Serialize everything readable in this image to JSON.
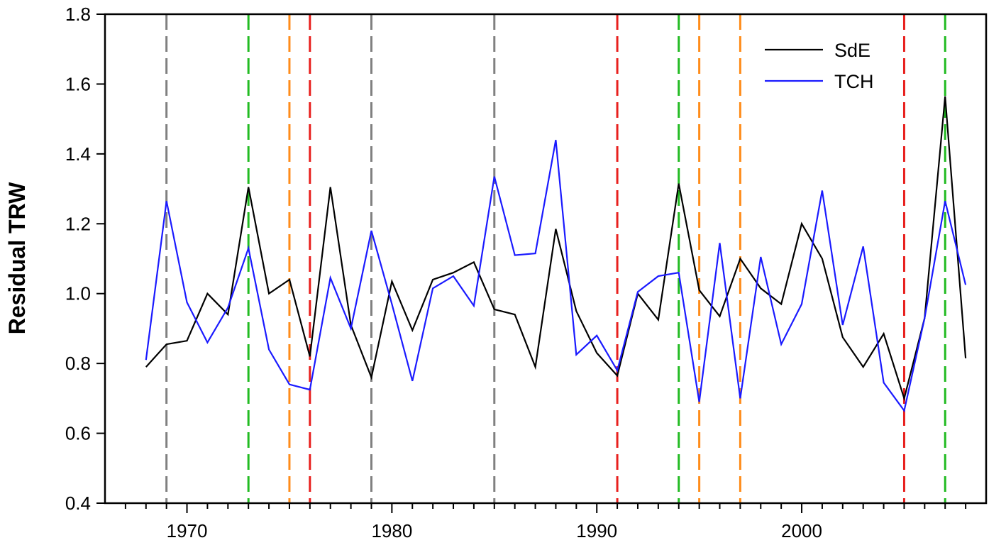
{
  "chart_data": {
    "type": "line",
    "title": "",
    "xlabel": "",
    "ylabel": "Residual TRW",
    "xlim": [
      1966,
      2009
    ],
    "ylim": [
      0.4,
      1.8
    ],
    "xticks": [
      1970,
      1980,
      1990,
      2000
    ],
    "yticks": [
      "0.4",
      "0.6",
      "0.8",
      "1.0",
      "1.2",
      "1.4",
      "1.6",
      "1.8"
    ],
    "grid": false,
    "legend_position": "top-right",
    "x": [
      1968,
      1969,
      1970,
      1971,
      1972,
      1973,
      1974,
      1975,
      1976,
      1977,
      1978,
      1979,
      1980,
      1981,
      1982,
      1983,
      1984,
      1985,
      1986,
      1987,
      1988,
      1989,
      1990,
      1991,
      1992,
      1993,
      1994,
      1995,
      1996,
      1997,
      1998,
      1999,
      2000,
      2001,
      2002,
      2003,
      2004,
      2005,
      2006,
      2007,
      2008
    ],
    "series": [
      {
        "name": "SdE",
        "color": "#000000",
        "values": [
          0.79,
          0.855,
          0.865,
          1.0,
          0.94,
          1.305,
          1.0,
          1.04,
          0.82,
          1.305,
          0.91,
          0.76,
          1.035,
          0.895,
          1.04,
          1.06,
          1.09,
          0.955,
          0.94,
          0.79,
          1.185,
          0.95,
          0.83,
          0.765,
          1.0,
          0.925,
          1.315,
          1.01,
          0.935,
          1.1,
          1.015,
          0.97,
          1.2,
          1.1,
          0.875,
          0.79,
          0.885,
          0.7,
          0.93,
          1.565,
          0.815
        ]
      },
      {
        "name": "TCH",
        "color": "#1a1aff",
        "values": [
          0.81,
          1.265,
          0.975,
          0.86,
          0.96,
          1.13,
          0.84,
          0.74,
          0.725,
          1.045,
          0.9,
          1.18,
          0.97,
          0.75,
          1.015,
          1.05,
          0.965,
          1.335,
          1.11,
          1.115,
          1.44,
          0.825,
          0.88,
          0.78,
          1.005,
          1.05,
          1.06,
          0.69,
          1.145,
          0.7,
          1.105,
          0.855,
          0.97,
          1.295,
          0.91,
          1.135,
          0.745,
          0.665,
          0.93,
          1.265,
          1.025
        ]
      }
    ],
    "event_lines": [
      {
        "year": 1969,
        "color": "#808080"
      },
      {
        "year": 1973,
        "color": "#22bb22"
      },
      {
        "year": 1975,
        "color": "#ff8c1a"
      },
      {
        "year": 1976,
        "color": "#e8201e"
      },
      {
        "year": 1979,
        "color": "#808080"
      },
      {
        "year": 1985,
        "color": "#808080"
      },
      {
        "year": 1991,
        "color": "#e8201e"
      },
      {
        "year": 1994,
        "color": "#22bb22"
      },
      {
        "year": 1995,
        "color": "#ff8c1a"
      },
      {
        "year": 1997,
        "color": "#ff8c1a"
      },
      {
        "year": 2005,
        "color": "#e8201e"
      },
      {
        "year": 2007,
        "color": "#22bb22"
      }
    ]
  }
}
